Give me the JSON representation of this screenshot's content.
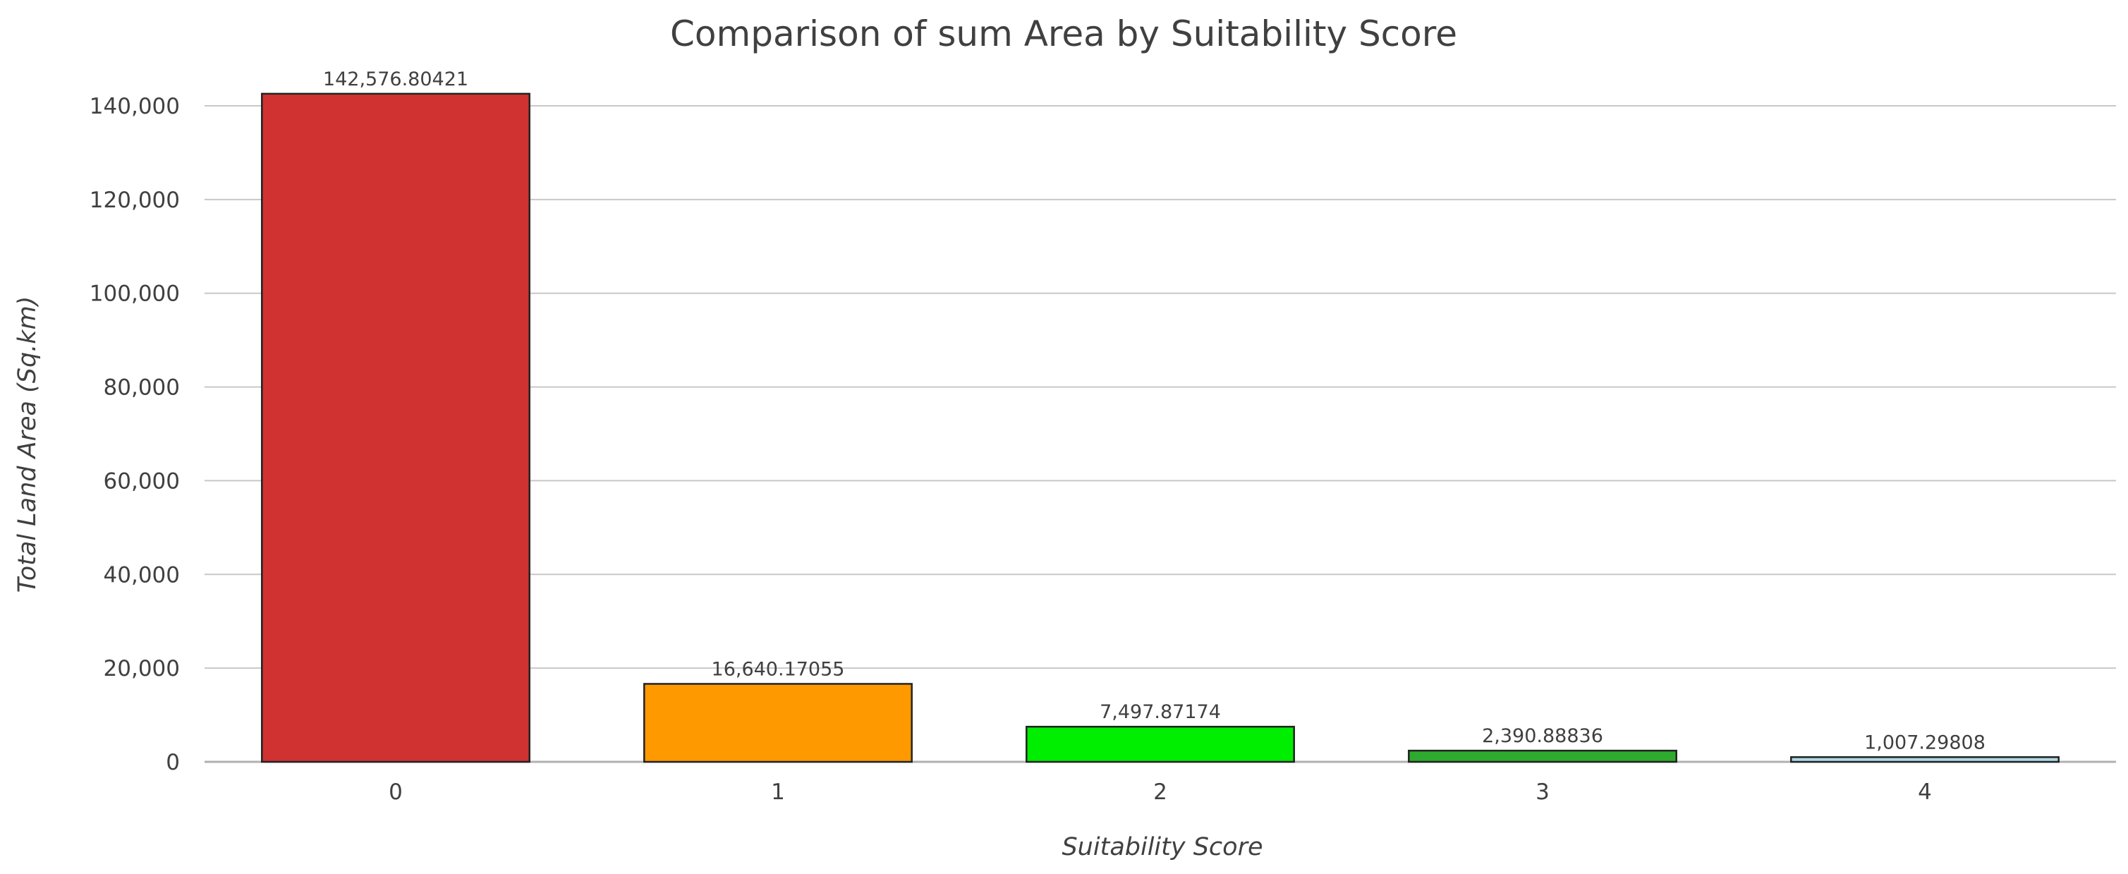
{
  "chart_data": {
    "type": "bar",
    "title": "Comparison of sum Area by Suitability Score",
    "xlabel": "Suitability Score",
    "ylabel": "Total Land Area (Sq.km)",
    "categories": [
      "0",
      "1",
      "2",
      "3",
      "4"
    ],
    "values": [
      142576.80421,
      16640.17055,
      7497.87174,
      2390.88836,
      1007.29808
    ],
    "data_labels": [
      "142,576.80421",
      "16,640.17055",
      "7,497.87174",
      "2,390.88836",
      "1,007.29808"
    ],
    "colors": [
      "#d03232",
      "#ff9900",
      "#00ee00",
      "#2eaa2e",
      "#add8e6"
    ],
    "ylim": [
      0,
      140000
    ],
    "yticks": [
      0,
      20000,
      40000,
      60000,
      80000,
      100000,
      120000,
      140000
    ],
    "ytick_labels": [
      "0",
      "20,000",
      "40,000",
      "60,000",
      "80,000",
      "100,000",
      "120,000",
      "140,000"
    ],
    "grid": true,
    "legend": "none"
  }
}
